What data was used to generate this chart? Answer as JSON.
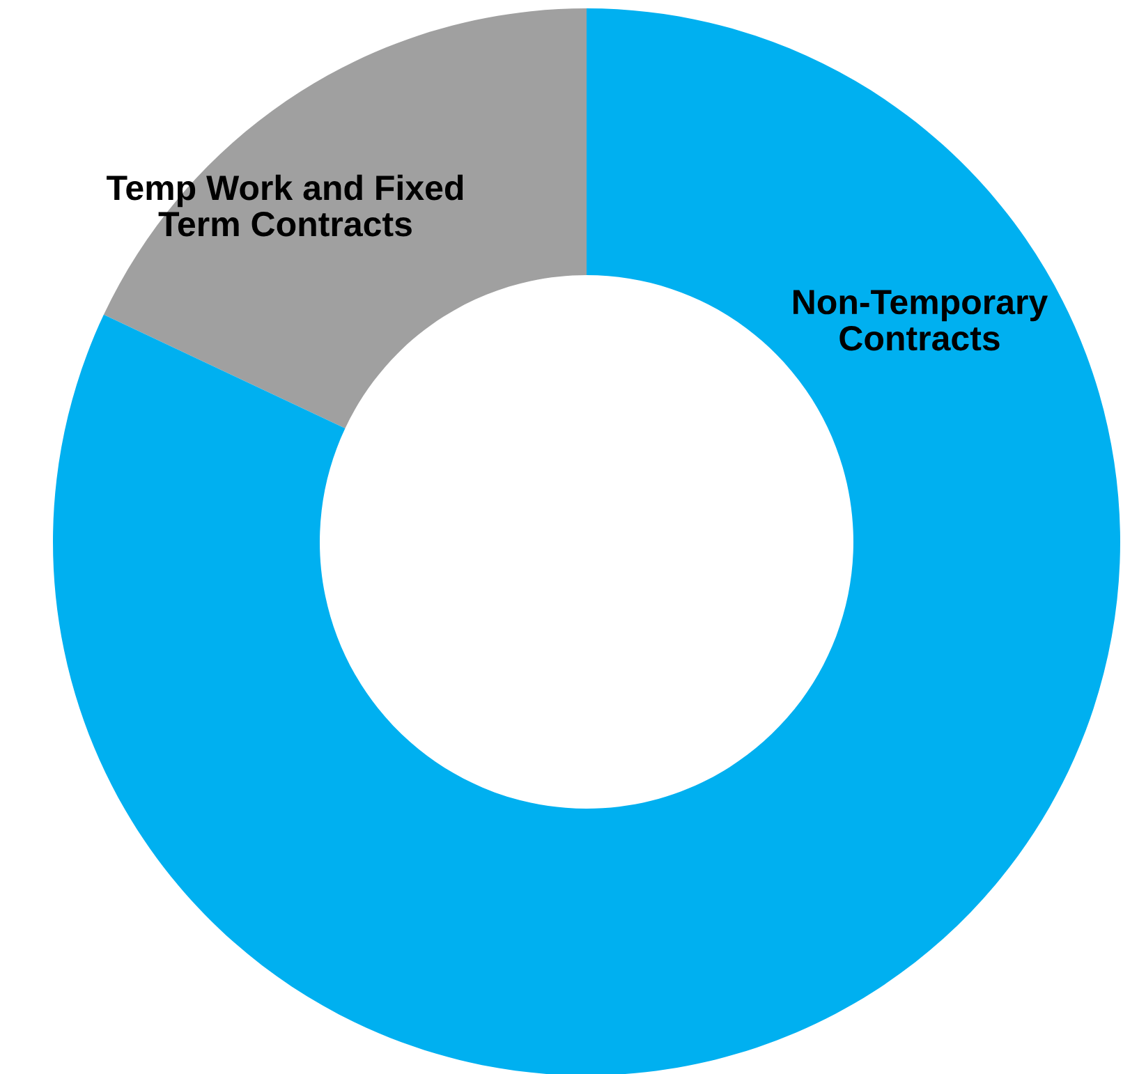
{
  "chart_data": {
    "type": "donut",
    "categories": [
      "Temp Work and Fixed Term Contracts",
      "Non-Temporary Contracts"
    ],
    "values": [
      18,
      82
    ],
    "colors": [
      "#a0a0a0",
      "#00b0f0"
    ]
  }
}
